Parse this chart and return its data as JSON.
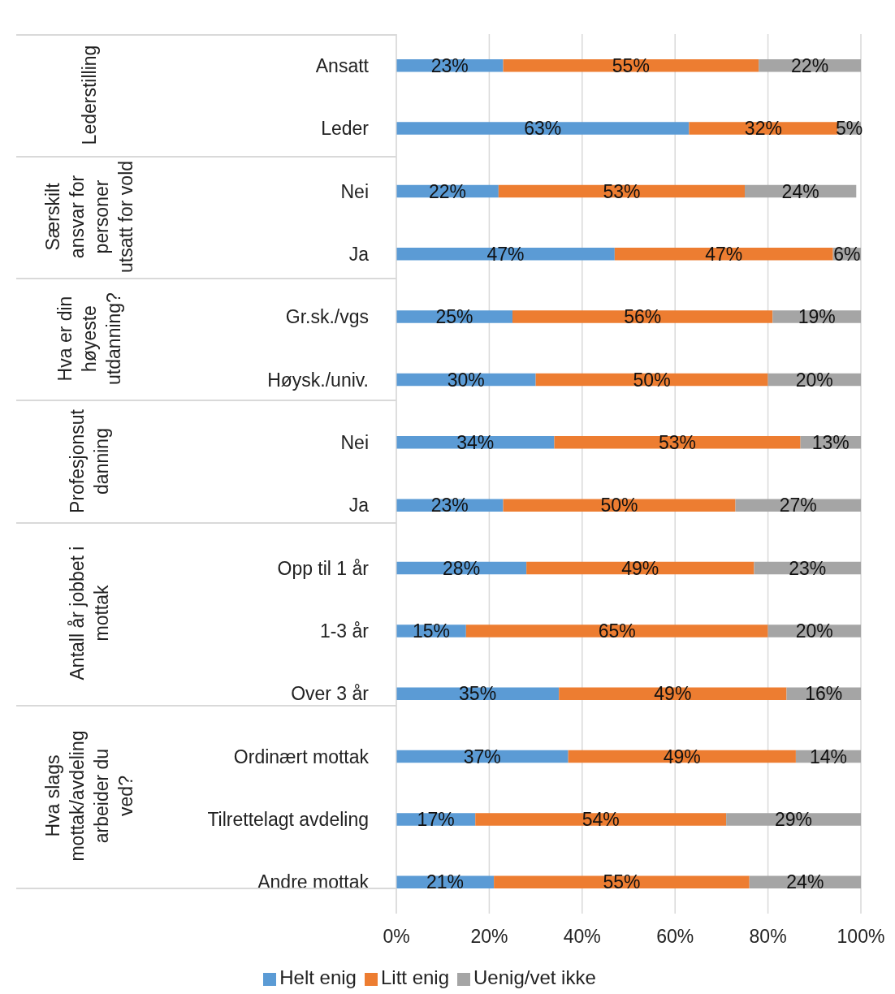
{
  "chart_data": {
    "type": "bar",
    "orientation": "horizontal",
    "stacked": true,
    "categories": [
      "Ansatt",
      "Leder",
      "Nei",
      "Ja",
      "Gr.sk./vgs",
      "Høysk./univ.",
      "Nei",
      "Ja",
      "Opp til 1 år",
      "1-3 år",
      "Over 3 år",
      "Ordinært mottak",
      "Tilrettelagt avdeling",
      "Andre mottak"
    ],
    "series": [
      {
        "name": "Helt enig",
        "color": "#5b9bd5",
        "values": [
          23,
          63,
          22,
          47,
          25,
          30,
          34,
          23,
          28,
          15,
          35,
          37,
          17,
          21
        ],
        "value_labels": [
          "23%",
          "63%",
          "22%",
          "47%",
          "25%",
          "30%",
          "34%",
          "23%",
          "28%",
          "15%",
          "35%",
          "37%",
          "17%",
          "21%"
        ]
      },
      {
        "name": "Litt enig",
        "color": "#ed7d31",
        "values": [
          55,
          32,
          53,
          47,
          56,
          50,
          53,
          50,
          49,
          65,
          49,
          49,
          54,
          55
        ],
        "value_labels": [
          "55%",
          "32%",
          "53%",
          "47%",
          "56%",
          "50%",
          "53%",
          "50%",
          "49%",
          "65%",
          "49%",
          "49%",
          "54%",
          "55%"
        ]
      },
      {
        "name": "Uenig/vet ikke",
        "color": "#a5a5a5",
        "values": [
          22,
          5,
          24,
          6,
          19,
          20,
          13,
          27,
          23,
          20,
          16,
          14,
          29,
          24
        ],
        "value_labels": [
          "22%",
          "5%",
          "24%",
          "6%",
          "19%",
          "20%",
          "13%",
          "27%",
          "23%",
          "20%",
          "16%",
          "14%",
          "29%",
          "24%"
        ]
      }
    ],
    "annotations": [
      "Lederstilling",
      "Særskilt ansvar for personer utsatt for vold",
      "Hva er din høyeste utdanning?",
      "Profesjonsutdanning",
      "Antall år jobbet i mottak",
      "Hva slags mottak/avdeling arbeider du ved?"
    ],
    "xlim": [
      0,
      100
    ],
    "xticks": [
      {
        "value": 0,
        "label": "0%"
      },
      {
        "value": 20,
        "label": "20%"
      },
      {
        "value": 40,
        "label": "40%"
      },
      {
        "value": 60,
        "label": "60%"
      },
      {
        "value": 80,
        "label": "80%"
      },
      {
        "value": 100,
        "label": "100%"
      }
    ],
    "grid": "x",
    "legend": "bottom"
  }
}
